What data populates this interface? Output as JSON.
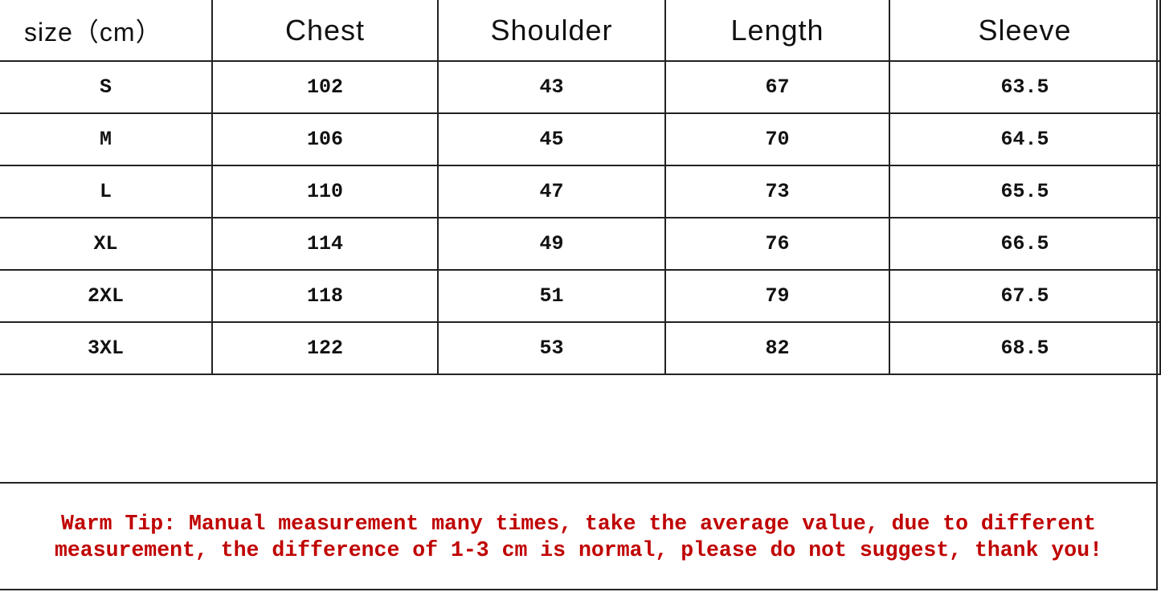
{
  "table": {
    "header": [
      "size（cm）",
      "Chest",
      "Shoulder",
      "Length",
      "Sleeve"
    ],
    "rows": [
      [
        "S",
        "102",
        "43",
        "67",
        "63.5"
      ],
      [
        "M",
        "106",
        "45",
        "70",
        "64.5"
      ],
      [
        "L",
        "110",
        "47",
        "73",
        "65.5"
      ],
      [
        "XL",
        "114",
        "49",
        "76",
        "66.5"
      ],
      [
        "2XL",
        "118",
        "51",
        "79",
        "67.5"
      ],
      [
        "3XL",
        "122",
        "53",
        "82",
        "68.5"
      ]
    ]
  },
  "tip": "Warm Tip: Manual measurement many times, take the average value, due to different measurement, the difference of 1-3 cm is normal, please do not suggest, thank you!"
}
